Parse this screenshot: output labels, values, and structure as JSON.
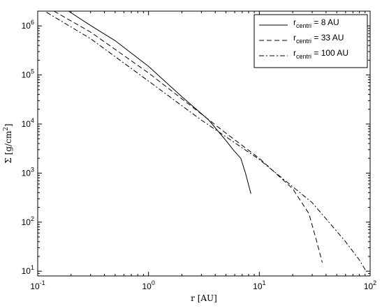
{
  "chart_data": {
    "type": "line",
    "xscale": "log",
    "yscale": "log",
    "xlim": [
      0.1,
      100
    ],
    "ylim": [
      8,
      2000000
    ],
    "xticks": [
      {
        "value": 0.1,
        "base": "10",
        "exp": "-1"
      },
      {
        "value": 1,
        "base": "10",
        "exp": "0"
      },
      {
        "value": 10,
        "base": "10",
        "exp": "1"
      },
      {
        "value": 100,
        "base": "10",
        "exp": "2"
      }
    ],
    "yticks": [
      {
        "value": 10,
        "base": "10",
        "exp": "1"
      },
      {
        "value": 100,
        "base": "10",
        "exp": "2"
      },
      {
        "value": 1000,
        "base": "10",
        "exp": "3"
      },
      {
        "value": 10000,
        "base": "10",
        "exp": "4"
      },
      {
        "value": 100000,
        "base": "10",
        "exp": "5"
      },
      {
        "value": 1000000,
        "base": "10",
        "exp": "6"
      }
    ],
    "xlabel": "r [AU]",
    "ylabel": {
      "main": "Σ [g/cm",
      "sup": "2",
      "end": "]"
    },
    "grid": false,
    "legend_position": "top-right",
    "series": [
      {
        "name": {
          "pre": "r",
          "sub": "centri",
          "post": " = 8 AU"
        },
        "style": "solid",
        "x": [
          0.19,
          0.3,
          0.5,
          1.0,
          2.0,
          3.5,
          5.0,
          5.8,
          6.8,
          7.5,
          8.4
        ],
        "y": [
          2000000,
          1020000,
          500000,
          150000,
          36000,
          12000,
          4600,
          3000,
          2000,
          1000,
          380
        ]
      },
      {
        "name": {
          "pre": "r",
          "sub": "centri",
          "post": " = 33 AU"
        },
        "style": "dashed",
        "x": [
          0.14,
          0.3,
          1.0,
          3.0,
          5.0,
          10.0,
          20.0,
          28.0,
          33.0,
          37.0
        ],
        "y": [
          2000000,
          750000,
          110000,
          16000,
          6500,
          2000,
          480,
          150,
          40,
          15
        ]
      },
      {
        "name": {
          "pre": "r",
          "sub": "centri",
          "post": " = 100 AU"
        },
        "style": "dashdot",
        "x": [
          0.12,
          0.3,
          1.0,
          3.0,
          10.0,
          30.0,
          60.0,
          80.0,
          92.0
        ],
        "y": [
          1900000,
          550000,
          75000,
          12000,
          1900,
          250,
          40,
          17,
          10
        ]
      }
    ]
  }
}
